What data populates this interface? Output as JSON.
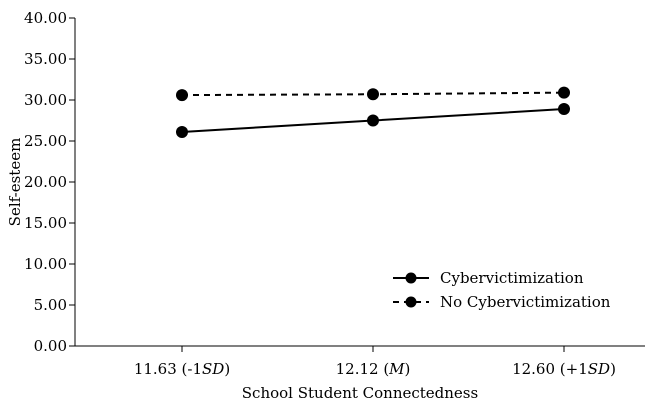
{
  "chart_data": {
    "type": "line",
    "xlabel": "School Student Connectedness",
    "ylabel": "Self-esteem",
    "categories": [
      {
        "value": "11.63",
        "open": " (-1",
        "italic": "SD",
        "close": ")"
      },
      {
        "value": "12.12",
        "open": " (",
        "italic": "M",
        "close": ")"
      },
      {
        "value": "12.60",
        "open": " (+1",
        "italic": "SD",
        "close": ")"
      }
    ],
    "y_ticks": [
      "0.00",
      "5.00",
      "10.00",
      "15.00",
      "20.00",
      "25.00",
      "30.00",
      "35.00",
      "40.00"
    ],
    "ylim": [
      0,
      40
    ],
    "grid": false,
    "legend_position": "bottom-right",
    "series": [
      {
        "name": "Cybervictimization",
        "values": [
          26.1,
          27.5,
          28.9
        ],
        "style": "solid",
        "color": "#000000"
      },
      {
        "name": "No Cybervictimization",
        "values": [
          30.6,
          30.7,
          30.9
        ],
        "style": "dashed",
        "color": "#000000"
      }
    ]
  }
}
